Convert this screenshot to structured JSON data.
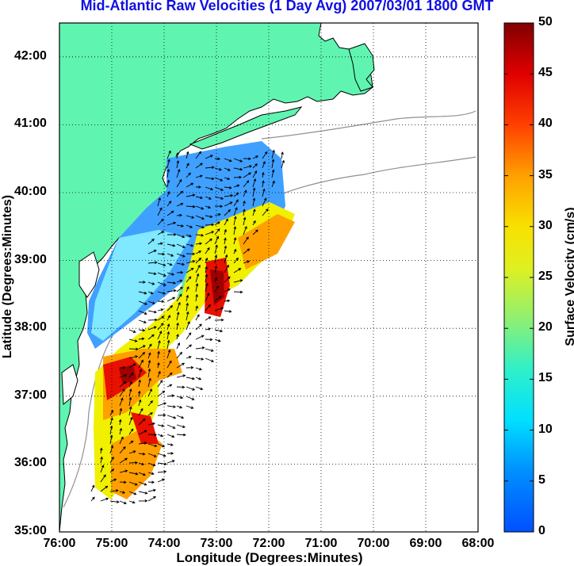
{
  "title": "Mid-Atlantic Raw Velocities (1 Day Avg) 2007/03/01 1800 GMT",
  "xlabel": "Longitude (Degrees:Minutes)",
  "ylabel": "Latitude (Degrees:Minutes)",
  "colorbar": {
    "label": "Surface Velocity (cm/s)",
    "ticks": [
      "0",
      "5",
      "10",
      "15",
      "20",
      "25",
      "30",
      "35",
      "40",
      "45",
      "50"
    ],
    "range": [
      0,
      50
    ],
    "colors": [
      "#0050ff",
      "#00c8ff",
      "#40f0c0",
      "#b0f040",
      "#f8f000",
      "#ffa000",
      "#ff3000",
      "#8b0000"
    ]
  },
  "map": {
    "x_ticks": [
      "76:00",
      "75:00",
      "74:00",
      "73:00",
      "72:00",
      "71:00",
      "70:00",
      "69:00",
      "68:00"
    ],
    "y_ticks": [
      "42:00",
      "41:00",
      "40:00",
      "39:00",
      "38:00",
      "37:00",
      "36:00",
      "35:00"
    ],
    "xlim": [
      -76,
      -68
    ],
    "ylim": [
      35,
      42.5
    ],
    "land_color": "#5ff5b0",
    "grid": "dotted"
  }
}
